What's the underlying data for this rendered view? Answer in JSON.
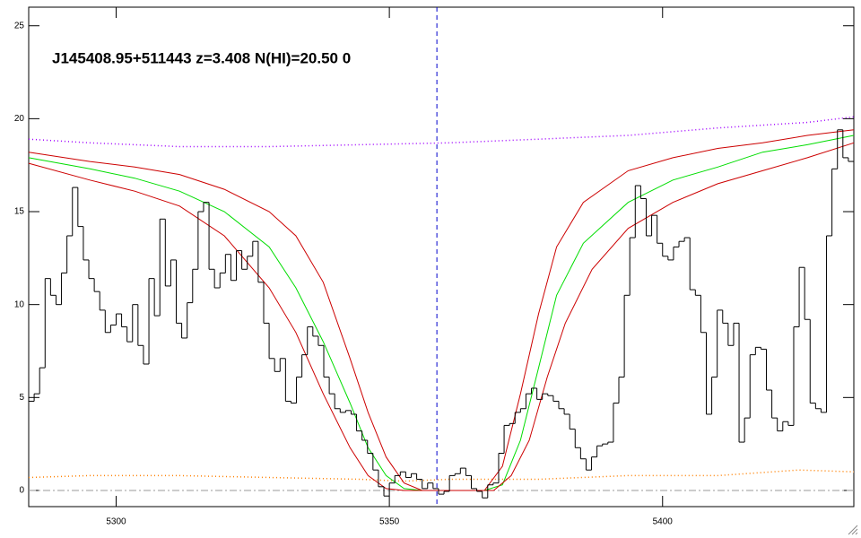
{
  "chart_data": {
    "type": "histogram",
    "title": "J145408.95+511443 z=3.408 N(HI)=20.50 0",
    "color": "#000000",
    "xlim": [
      5284,
      5435
    ],
    "ylim": [
      -0.87,
      26
    ],
    "xticks": [
      5300,
      5350,
      5400
    ],
    "yticks": [
      0,
      5,
      10,
      15,
      20,
      25
    ],
    "baseline": {
      "color": "#999999",
      "style": "dashdot"
    },
    "vline": {
      "x": 5358.7,
      "color": "#0000cc",
      "style": "dashed"
    },
    "bins": [
      5284,
      5285,
      5286,
      5287,
      5288,
      5289,
      5290,
      5291,
      5292,
      5293,
      5294,
      5295,
      5296,
      5297,
      5298,
      5299,
      5300,
      5301,
      5302,
      5303,
      5304,
      5305,
      5306,
      5307,
      5308,
      5309,
      5310,
      5311,
      5312,
      5313,
      5314,
      5315,
      5316,
      5317,
      5318,
      5319,
      5320,
      5321,
      5322,
      5323,
      5324,
      5325,
      5326,
      5327,
      5328,
      5329,
      5330,
      5331,
      5332,
      5333,
      5334,
      5335,
      5336,
      5337,
      5338,
      5339,
      5340,
      5341,
      5342,
      5343,
      5344,
      5345,
      5346,
      5347,
      5348,
      5349,
      5350,
      5351,
      5352,
      5353,
      5354,
      5355,
      5356,
      5357,
      5358,
      5359,
      5360,
      5361,
      5362,
      5363,
      5364,
      5365,
      5366,
      5367,
      5368,
      5369,
      5370,
      5371,
      5372,
      5373,
      5374,
      5375,
      5376,
      5377,
      5378,
      5379,
      5380,
      5381,
      5382,
      5383,
      5384,
      5385,
      5386,
      5387,
      5388,
      5389,
      5390,
      5391,
      5392,
      5393,
      5394,
      5395,
      5396,
      5397,
      5398,
      5399,
      5400,
      5401,
      5402,
      5403,
      5404,
      5405,
      5406,
      5407,
      5408,
      5409,
      5410,
      5411,
      5412,
      5413,
      5414,
      5415,
      5416,
      5417,
      5418,
      5419,
      5420,
      5421,
      5422,
      5423,
      5424,
      5425,
      5426,
      5427,
      5428,
      5429,
      5430,
      5431,
      5432,
      5433,
      5434,
      5435
    ],
    "counts": [
      4.8,
      5.2,
      6.6,
      11.4,
      10.5,
      10.0,
      11.7,
      13.7,
      16.3,
      14.2,
      12.4,
      11.4,
      10.7,
      9.7,
      8.5,
      8.9,
      9.5,
      8.8,
      8.0,
      10.0,
      7.8,
      6.8,
      11.4,
      9.4,
      14.6,
      11.0,
      12.4,
      9.0,
      8.2,
      10.1,
      11.9,
      15.0,
      15.5,
      11.9,
      10.9,
      11.7,
      12.7,
      11.3,
      12.9,
      11.9,
      12.6,
      13.4,
      11.2,
      9.0,
      7.1,
      6.4,
      7.1,
      4.8,
      4.7,
      6.1,
      7.3,
      8.8,
      8.3,
      7.8,
      6.1,
      5.2,
      4.4,
      4.2,
      4.3,
      4.1,
      3.2,
      2.7,
      2.0,
      1.1,
      0.2,
      -0.3,
      0.4,
      0.8,
      1.0,
      0.7,
      0.9,
      0.6,
      0.1,
      0.4,
      0.1,
      -0.2,
      -0.05,
      0.8,
      0.9,
      1.2,
      0.8,
      0.1,
      -0.05,
      -0.4,
      0.3,
      0.4,
      2.0,
      3.5,
      3.6,
      4.2,
      4.4,
      5.2,
      5.5,
      4.9,
      5.2,
      5.1,
      4.8,
      4.4,
      4.1,
      3.3,
      2.3,
      1.7,
      1.1,
      1.8,
      2.4,
      2.5,
      2.6,
      4.7,
      6.1,
      10.5,
      13.6,
      16.4,
      15.7,
      13.7,
      14.8,
      13.3,
      12.6,
      12.4,
      13.1,
      13.4,
      13.6,
      10.8,
      10.5,
      8.5,
      4.1,
      6.1,
      9.7,
      9.0,
      7.8,
      9.0,
      2.6,
      3.9,
      7.3,
      7.7,
      7.6,
      5.4,
      3.9,
      3.2,
      3.7,
      3.5,
      8.8,
      12.0,
      9.2,
      4.7,
      4.4,
      4.2,
      13.7,
      17.3,
      19.4,
      17.9,
      17.7
    ],
    "series": [
      {
        "color": "#a000ff",
        "style": "dotted",
        "x": [
          5284,
          5295.2,
          5311.6,
          5328.0,
          5344.5,
          5360.9,
          5377.3,
          5393.7,
          5410.1,
          5426.5,
          5435
        ],
        "values": [
          18.9,
          18.7,
          18.5,
          18.5,
          18.6,
          18.7,
          18.9,
          19.1,
          19.5,
          19.8,
          20.1
        ]
      },
      {
        "color": "#ff8000",
        "style": "dotted",
        "x": [
          5284,
          5295.2,
          5311.6,
          5328.0,
          5344.5,
          5352.7,
          5360.9,
          5377.3,
          5393.7,
          5410.1,
          5424.9,
          5435
        ],
        "values": [
          0.7,
          0.8,
          0.8,
          0.7,
          0.6,
          0.5,
          0.6,
          0.6,
          0.8,
          0.8,
          1.1,
          1.0
        ]
      },
      {
        "color": "#cc0000",
        "style": "solid",
        "x": [
          5284,
          5295.2,
          5303.4,
          5311.6,
          5319.8,
          5328.0,
          5332.9,
          5337.9,
          5342.8,
          5346.1,
          5349.4,
          5352.7,
          5356.0,
          5367.4,
          5370.7,
          5374.0,
          5377.3,
          5380.6,
          5385.5,
          5393.7,
          5401.9,
          5410.1,
          5418.3,
          5426.5,
          5435
        ],
        "values": [
          18.2,
          17.7,
          17.4,
          17.0,
          16.2,
          15.0,
          13.7,
          11.2,
          7.1,
          4.2,
          1.8,
          0.4,
          0,
          0,
          1.3,
          5.2,
          9.5,
          13.1,
          15.5,
          17.2,
          17.9,
          18.4,
          18.7,
          19.1,
          19.4
        ]
      },
      {
        "color": "#00dd00",
        "style": "solid",
        "x": [
          5284,
          5295.2,
          5303.4,
          5311.6,
          5319.8,
          5328.0,
          5332.9,
          5337.9,
          5342.8,
          5346.1,
          5349.4,
          5352.7,
          5356.0,
          5367.4,
          5370.7,
          5374.0,
          5377.3,
          5380.6,
          5385.5,
          5393.7,
          5401.9,
          5410.1,
          5418.3,
          5426.5,
          5435
        ],
        "values": [
          17.9,
          17.3,
          16.8,
          16.1,
          15.0,
          13.1,
          10.9,
          8.0,
          4.7,
          2.3,
          0.8,
          0.1,
          0,
          0,
          0.3,
          2.7,
          6.6,
          10.5,
          13.3,
          15.5,
          16.7,
          17.4,
          18.2,
          18.6,
          19.1
        ]
      },
      {
        "color": "#cc0000",
        "style": "solid",
        "x": [
          5284,
          5295.2,
          5303.4,
          5311.6,
          5319.8,
          5328.0,
          5332.9,
          5337.9,
          5342.8,
          5346.1,
          5349.4,
          5352.7,
          5369.1,
          5372.3,
          5375.6,
          5378.9,
          5382.2,
          5387.1,
          5393.7,
          5401.9,
          5410.1,
          5418.3,
          5426.5,
          5435
        ],
        "values": [
          17.6,
          16.7,
          16.1,
          15.3,
          13.7,
          10.9,
          8.5,
          5.2,
          2.3,
          0.8,
          0.1,
          0,
          0,
          0.8,
          2.7,
          6.1,
          9.0,
          11.9,
          14.1,
          15.5,
          16.5,
          17.2,
          17.9,
          18.7
        ]
      }
    ]
  }
}
